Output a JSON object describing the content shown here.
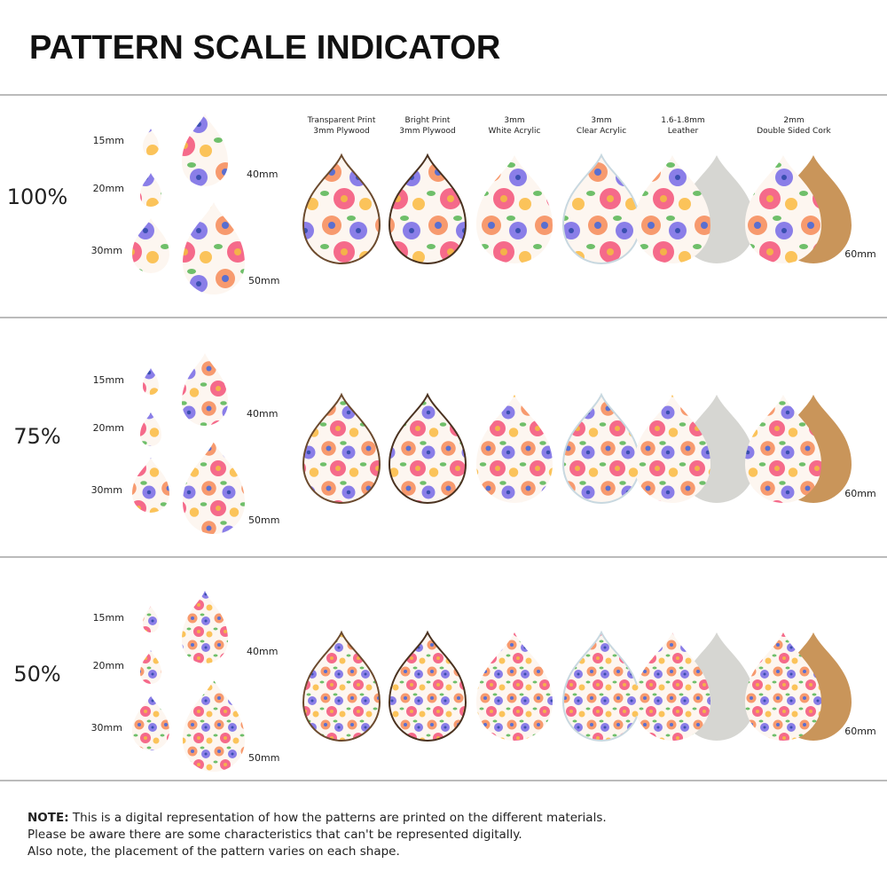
{
  "title": "PATTERN SCALE INDICATOR",
  "materials": [
    {
      "lines": [
        "Transparent Print",
        "3mm Plywood"
      ]
    },
    {
      "lines": [
        "Bright Print",
        "3mm Plywood"
      ]
    },
    {
      "lines": [
        "3mm",
        "White Acrylic"
      ]
    },
    {
      "lines": [
        "3mm",
        "Clear Acrylic"
      ]
    },
    {
      "lines": [
        "1.6-1.8mm",
        "Leather"
      ]
    },
    {
      "lines": [
        "2mm",
        "Double Sided Cork"
      ]
    }
  ],
  "rows": [
    {
      "scale": "100%",
      "sizes": [
        "15mm",
        "20mm",
        "30mm",
        "40mm",
        "50mm"
      ],
      "large_size": "60mm"
    },
    {
      "scale": "75%",
      "sizes": [
        "15mm",
        "20mm",
        "30mm",
        "40mm",
        "50mm"
      ],
      "large_size": "60mm"
    },
    {
      "scale": "50%",
      "sizes": [
        "15mm",
        "20mm",
        "30mm",
        "40mm",
        "50mm"
      ],
      "large_size": "60mm"
    }
  ],
  "note": {
    "label": "NOTE:",
    "lines": [
      "This is a digital representation of how the patterns are printed on the different materials.",
      "Please be aware there are some characteristics that can't be represented digitally.",
      "Also note, the placement of the pattern varies on each shape."
    ]
  }
}
